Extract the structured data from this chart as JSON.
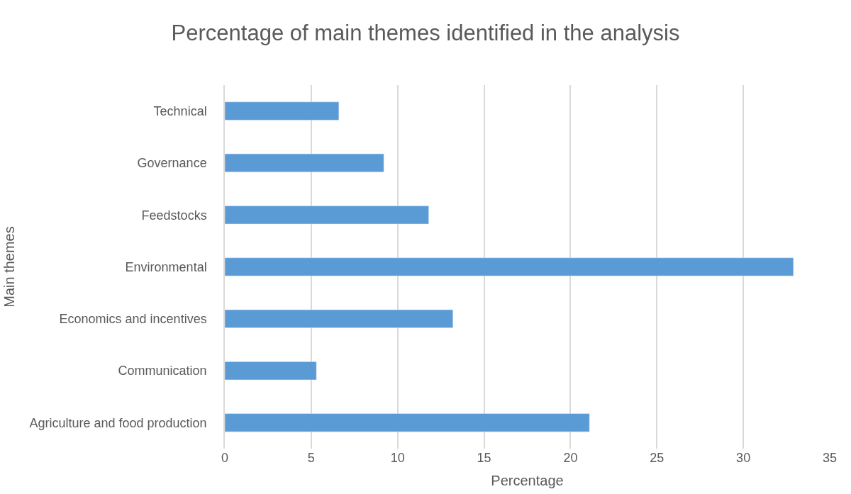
{
  "chart_data": {
    "type": "bar",
    "orientation": "horizontal",
    "title": "Percentage of main themes identified in the analysis",
    "xlabel": "Percentage",
    "ylabel": "Main themes",
    "categories": [
      "Technical",
      "Governance",
      "Feedstocks",
      "Environmental",
      "Economics and incentives",
      "Communication",
      "Agriculture and food production"
    ],
    "values": [
      6.6,
      9.2,
      11.8,
      32.9,
      13.2,
      5.3,
      21.1
    ],
    "color": "#5b9bd5",
    "xlim": [
      0,
      35
    ],
    "xticks": [
      0,
      5,
      10,
      15,
      20,
      25,
      30,
      35
    ],
    "grid": "x"
  }
}
